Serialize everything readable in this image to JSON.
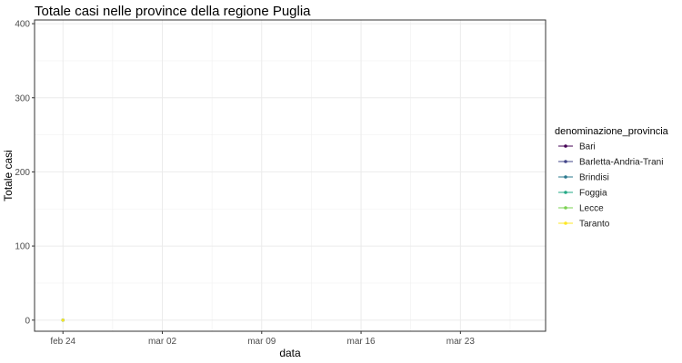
{
  "chart_data": {
    "type": "line",
    "title": "Totale casi nelle province della regione Puglia",
    "xlabel": "data",
    "ylabel": "Totale casi",
    "x_type": "date",
    "xlim": [
      "2020-02-22",
      "2020-03-29"
    ],
    "ylim": [
      -15,
      405
    ],
    "x_ticks": [
      {
        "date": "2020-02-24",
        "label": "feb 24"
      },
      {
        "date": "2020-03-02",
        "label": "mar 02"
      },
      {
        "date": "2020-03-09",
        "label": "mar 09"
      },
      {
        "date": "2020-03-16",
        "label": "mar 16"
      },
      {
        "date": "2020-03-23",
        "label": "mar 23"
      }
    ],
    "y_ticks": [
      0,
      100,
      200,
      300,
      400
    ],
    "grid": true,
    "legend": {
      "title": "denominazione_provincia",
      "position": "right"
    },
    "series": [
      {
        "name": "Bari",
        "color": "#440154",
        "points": [
          {
            "x": "2020-02-24",
            "y": 0
          }
        ]
      },
      {
        "name": "Barletta-Andria-Trani",
        "color": "#414487",
        "points": [
          {
            "x": "2020-02-24",
            "y": 0
          }
        ]
      },
      {
        "name": "Brindisi",
        "color": "#2a788e",
        "points": [
          {
            "x": "2020-02-24",
            "y": 0
          }
        ]
      },
      {
        "name": "Foggia",
        "color": "#22a884",
        "points": [
          {
            "x": "2020-02-24",
            "y": 0
          }
        ]
      },
      {
        "name": "Lecce",
        "color": "#7ad151",
        "points": [
          {
            "x": "2020-02-24",
            "y": 0
          }
        ]
      },
      {
        "name": "Taranto",
        "color": "#fde725",
        "points": [
          {
            "x": "2020-02-24",
            "y": 0
          }
        ]
      }
    ]
  }
}
